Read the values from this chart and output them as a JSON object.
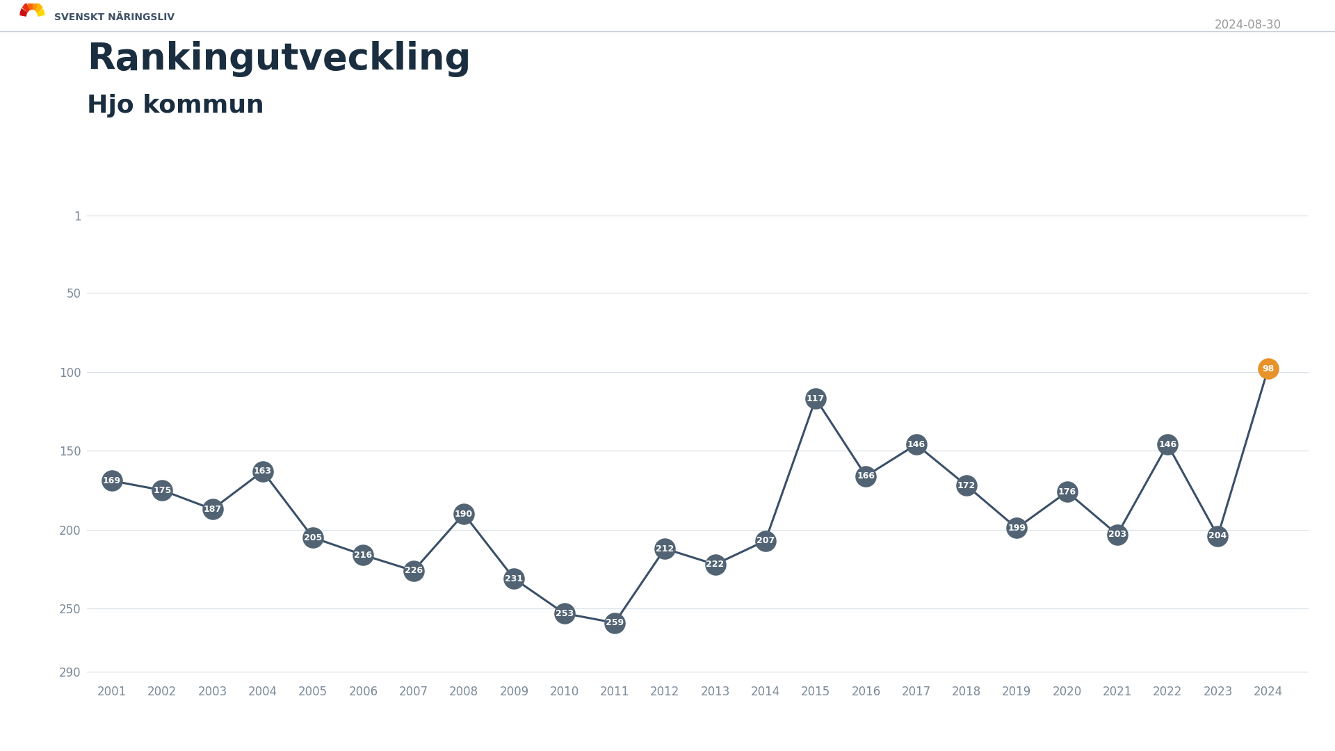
{
  "title_line1": "Rankingutveckling",
  "title_line2": "Hjo kommun",
  "date_label": "2024-08-30",
  "years": [
    2001,
    2002,
    2003,
    2004,
    2005,
    2006,
    2007,
    2008,
    2009,
    2010,
    2011,
    2012,
    2013,
    2014,
    2015,
    2016,
    2017,
    2018,
    2019,
    2020,
    2021,
    2022,
    2023,
    2024
  ],
  "values": [
    169,
    175,
    187,
    163,
    205,
    216,
    226,
    190,
    231,
    253,
    259,
    212,
    222,
    207,
    117,
    166,
    146,
    172,
    199,
    176,
    203,
    146,
    204,
    98
  ],
  "dot_color_default": "#526474",
  "dot_color_highlight": "#e8922a",
  "line_color": "#3a5068",
  "line_width": 2.2,
  "background_color": "#ffffff",
  "title_color": "#1a2e40",
  "axis_label_color": "#7a8a99",
  "yticks": [
    1,
    50,
    100,
    150,
    200,
    250,
    290
  ],
  "ymin": 295,
  "ymax": 0,
  "xmin": 2000.5,
  "xmax": 2024.8,
  "grid_color": "#d5dde5",
  "header_line_color": "#c5cdd5",
  "dot_size": 22,
  "label_fontsize": 9,
  "tick_fontsize": 12,
  "title1_fontsize": 38,
  "title2_fontsize": 26,
  "date_fontsize": 12,
  "date_color": "#999999"
}
